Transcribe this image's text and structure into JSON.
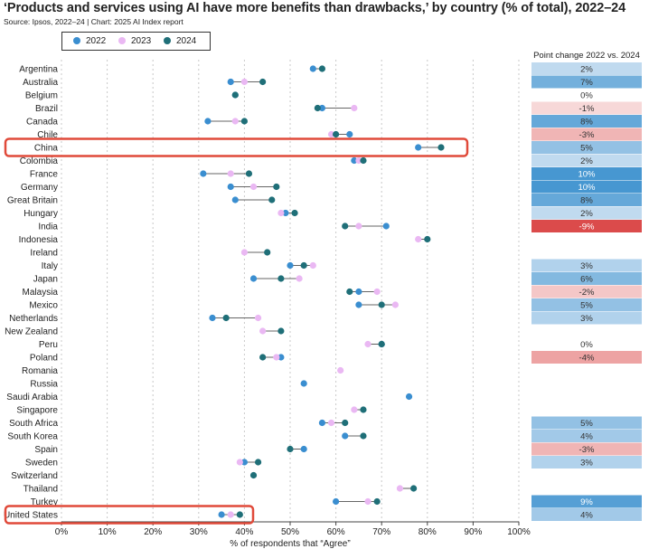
{
  "title": "‘Products and services using AI have more benefits than drawbacks,’ by country (% of total), 2022–24",
  "subtitle": "Source: Ipsos, 2022–24 | Chart: 2025 AI Index report",
  "legend": {
    "items": [
      {
        "label": "2022",
        "color": "#3a8ed0"
      },
      {
        "label": "2023",
        "color": "#eab8f3"
      },
      {
        "label": "2024",
        "color": "#1f6f78"
      }
    ]
  },
  "colors": {
    "y2022": "#3a8ed0",
    "y2023": "#eab8f3",
    "y2024": "#1f6f78",
    "highlight": "#e04a3a"
  },
  "chart_data": {
    "type": "scatter",
    "subtype": "dot-range (dumbbell)",
    "xlabel": "% of respondents that “Agree”",
    "xlim": [
      0,
      100
    ],
    "xticks": [
      "0%",
      "10%",
      "20%",
      "30%",
      "40%",
      "50%",
      "60%",
      "70%",
      "80%",
      "90%",
      "100%"
    ],
    "grid": "vertical dashed",
    "side_table_header": "Point change 2022 vs. 2024",
    "series_names": [
      "2022",
      "2023",
      "2024"
    ],
    "highlighted": [
      "China",
      "United States"
    ],
    "rows": [
      {
        "country": "Argentina",
        "v2022": 55,
        "v2023": null,
        "v2024": 57,
        "change": "2%",
        "delta": 2
      },
      {
        "country": "Australia",
        "v2022": 37,
        "v2023": 40,
        "v2024": 44,
        "change": "7%",
        "delta": 7
      },
      {
        "country": "Belgium",
        "v2022": 38,
        "v2023": null,
        "v2024": 38,
        "change": "0%",
        "delta": 0
      },
      {
        "country": "Brazil",
        "v2022": 57,
        "v2023": 64,
        "v2024": 56,
        "change": "-1%",
        "delta": -1
      },
      {
        "country": "Canada",
        "v2022": 32,
        "v2023": 38,
        "v2024": 40,
        "change": "8%",
        "delta": 8
      },
      {
        "country": "Chile",
        "v2022": 63,
        "v2023": 59,
        "v2024": 60,
        "change": "-3%",
        "delta": -3
      },
      {
        "country": "China",
        "v2022": 78,
        "v2023": null,
        "v2024": 83,
        "change": "5%",
        "delta": 5
      },
      {
        "country": "Colombia",
        "v2022": 64,
        "v2023": 65,
        "v2024": 66,
        "change": "2%",
        "delta": 2
      },
      {
        "country": "France",
        "v2022": 31,
        "v2023": 37,
        "v2024": 41,
        "change": "10%",
        "delta": 10
      },
      {
        "country": "Germany",
        "v2022": 37,
        "v2023": 42,
        "v2024": 47,
        "change": "10%",
        "delta": 10
      },
      {
        "country": "Great Britain",
        "v2022": 38,
        "v2023": null,
        "v2024": 46,
        "change": "8%",
        "delta": 8
      },
      {
        "country": "Hungary",
        "v2022": 49,
        "v2023": 48,
        "v2024": 51,
        "change": "2%",
        "delta": 2
      },
      {
        "country": "India",
        "v2022": 71,
        "v2023": 65,
        "v2024": 62,
        "change": "-9%",
        "delta": -9
      },
      {
        "country": "Indonesia",
        "v2022": null,
        "v2023": 78,
        "v2024": 80,
        "change": "",
        "delta": null
      },
      {
        "country": "Ireland",
        "v2022": null,
        "v2023": 40,
        "v2024": 45,
        "change": "",
        "delta": null
      },
      {
        "country": "Italy",
        "v2022": 50,
        "v2023": 55,
        "v2024": 53,
        "change": "3%",
        "delta": 3
      },
      {
        "country": "Japan",
        "v2022": 42,
        "v2023": 52,
        "v2024": 48,
        "change": "6%",
        "delta": 6
      },
      {
        "country": "Malaysia",
        "v2022": 65,
        "v2023": 69,
        "v2024": 63,
        "change": "-2%",
        "delta": -2
      },
      {
        "country": "Mexico",
        "v2022": 65,
        "v2023": 73,
        "v2024": 70,
        "change": "5%",
        "delta": 5
      },
      {
        "country": "Netherlands",
        "v2022": 33,
        "v2023": 43,
        "v2024": 36,
        "change": "3%",
        "delta": 3
      },
      {
        "country": "New Zealand",
        "v2022": null,
        "v2023": 44,
        "v2024": 48,
        "change": "",
        "delta": null
      },
      {
        "country": "Peru",
        "v2022": 70,
        "v2023": 67,
        "v2024": 70,
        "change": "0%",
        "delta": 0
      },
      {
        "country": "Poland",
        "v2022": 48,
        "v2023": 47,
        "v2024": 44,
        "change": "-4%",
        "delta": -4
      },
      {
        "country": "Romania",
        "v2022": null,
        "v2023": 61,
        "v2024": null,
        "change": "",
        "delta": null
      },
      {
        "country": "Russia",
        "v2022": 53,
        "v2023": null,
        "v2024": null,
        "change": "",
        "delta": null
      },
      {
        "country": "Saudi Arabia",
        "v2022": 76,
        "v2023": null,
        "v2024": null,
        "change": "",
        "delta": null
      },
      {
        "country": "Singapore",
        "v2022": null,
        "v2023": 64,
        "v2024": 66,
        "change": "",
        "delta": null
      },
      {
        "country": "South Africa",
        "v2022": 57,
        "v2023": 59,
        "v2024": 62,
        "change": "5%",
        "delta": 5
      },
      {
        "country": "South Korea",
        "v2022": 62,
        "v2023": null,
        "v2024": 66,
        "change": "4%",
        "delta": 4
      },
      {
        "country": "Spain",
        "v2022": 53,
        "v2023": null,
        "v2024": 50,
        "change": "-3%",
        "delta": -3
      },
      {
        "country": "Sweden",
        "v2022": 40,
        "v2023": 39,
        "v2024": 43,
        "change": "3%",
        "delta": 3
      },
      {
        "country": "Switzerland",
        "v2022": null,
        "v2023": null,
        "v2024": 42,
        "change": "",
        "delta": null
      },
      {
        "country": "Thailand",
        "v2022": null,
        "v2023": 74,
        "v2024": 77,
        "change": "",
        "delta": null
      },
      {
        "country": "Turkey",
        "v2022": 60,
        "v2023": 67,
        "v2024": 69,
        "change": "9%",
        "delta": 9
      },
      {
        "country": "United States",
        "v2022": 35,
        "v2023": 37,
        "v2024": 39,
        "change": "4%",
        "delta": 4
      }
    ]
  }
}
